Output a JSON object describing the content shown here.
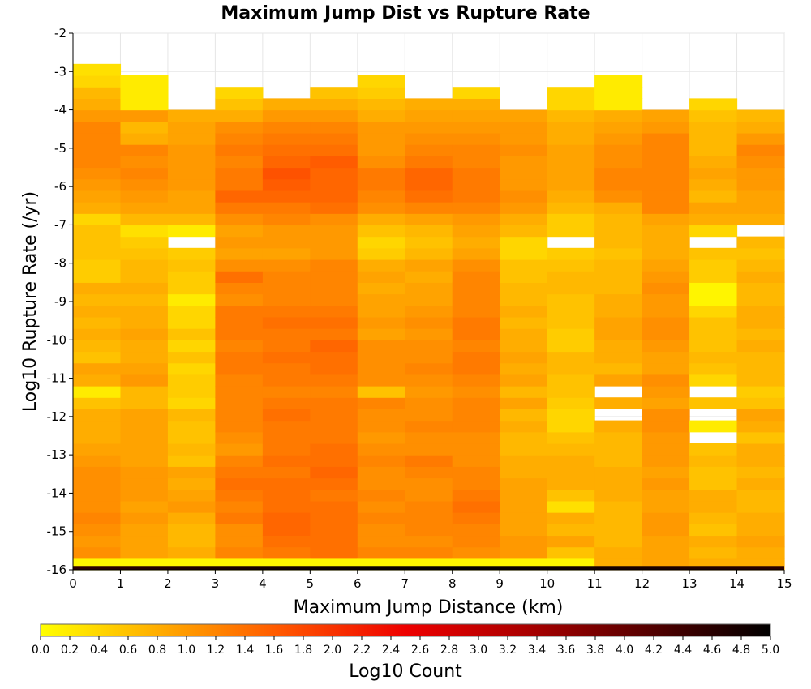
{
  "chart_data": {
    "type": "heatmap",
    "title": "Maximum Jump Dist vs Rupture Rate",
    "xlabel": "Maximum Jump Distance (km)",
    "ylabel": "Log10 Rupture Rate (/yr)",
    "colorbar_label": "Log10 Count",
    "xlim": [
      0,
      15
    ],
    "ylim": [
      -16,
      -2
    ],
    "x_ticks": [
      "0",
      "1",
      "2",
      "3",
      "4",
      "5",
      "6",
      "7",
      "8",
      "9",
      "10",
      "11",
      "12",
      "13",
      "14",
      "15"
    ],
    "y_ticks": [
      "-2",
      "-3",
      "-4",
      "-5",
      "-6",
      "-7",
      "-8",
      "-9",
      "-10",
      "-11",
      "-12",
      "-13",
      "-14",
      "-15",
      "-16"
    ],
    "colorbar_range": [
      0,
      5
    ],
    "colorbar_ticks": [
      "0.0",
      "0.2",
      "0.4",
      "0.6",
      "0.8",
      "1.0",
      "1.2",
      "1.4",
      "1.6",
      "1.8",
      "2.0",
      "2.2",
      "2.4",
      "2.6",
      "2.8",
      "3.0",
      "3.2",
      "3.4",
      "3.6",
      "3.8",
      "4.0",
      "4.2",
      "4.4",
      "4.6",
      "4.8",
      "5.0"
    ],
    "colormap": [
      "#ffff00",
      "#ffaa00",
      "#ff5500",
      "#ee0000",
      "#aa0000",
      "#550000",
      "#000000"
    ],
    "x_bin_width_km": 1,
    "y_bin_width_log10": 0.3,
    "y_bin_start": -16,
    "x_bin_centers_km": [
      0.5,
      1.5,
      2.5,
      3.5,
      4.5,
      5.5,
      6.5,
      7.5,
      8.5,
      9.5,
      10.5,
      11.5,
      12.5,
      13.5,
      14.5
    ],
    "y_bin_centers_log10": [
      -15.85,
      -15.55,
      -15.25,
      -14.95,
      -14.65,
      -14.35,
      -14.05,
      -13.75,
      -13.45,
      -13.15,
      -12.85,
      -12.55,
      -12.25,
      -11.95,
      -11.65,
      -11.35,
      -11.05,
      -10.75,
      -10.45,
      -10.15,
      -9.85,
      -9.55,
      -9.25,
      -8.95,
      -8.65,
      -8.35,
      -8.05,
      -7.75,
      -7.45,
      -7.15,
      -6.85,
      -6.55,
      -6.25,
      -5.95,
      -5.65,
      -5.35,
      -5.05,
      -4.75,
      -4.45,
      -4.15,
      -3.85,
      -3.55,
      -3.25,
      -2.95
    ],
    "log10_count_rows_by_x_bin": [
      [
        0.1,
        1.1,
        1.0,
        1.1,
        1.2,
        1.1,
        1.1,
        1.1,
        1.1,
        1.0,
        0.9,
        0.8,
        0.8,
        0.8,
        0.6,
        0.2,
        0.8,
        0.9,
        0.6,
        0.7,
        0.8,
        0.7,
        0.8,
        0.7,
        0.8,
        0.5,
        0.5,
        0.6,
        0.6,
        0.6,
        0.4,
        0.8,
        0.9,
        1.0,
        1.1,
        1.2,
        1.2,
        1.2,
        1.2,
        1.0,
        0.8,
        0.7,
        0.4,
        0.3
      ],
      [
        0.1,
        0.9,
        0.9,
        0.9,
        1.0,
        0.9,
        1.0,
        1.0,
        1.0,
        0.9,
        0.9,
        0.9,
        0.9,
        0.9,
        0.7,
        0.7,
        1.0,
        0.9,
        0.8,
        0.8,
        0.9,
        0.8,
        0.8,
        0.7,
        0.8,
        0.7,
        0.7,
        0.6,
        0.5,
        0.3,
        0.7,
        0.9,
        1.0,
        1.1,
        1.2,
        1.1,
        1.2,
        0.8,
        0.7,
        1.0,
        0.2,
        0.2,
        0.2,
        null
      ],
      [
        0.1,
        0.8,
        0.7,
        0.7,
        0.8,
        1.0,
        0.9,
        0.8,
        0.9,
        0.6,
        0.7,
        0.6,
        0.6,
        0.7,
        0.4,
        0.5,
        0.5,
        0.4,
        0.6,
        0.4,
        0.6,
        0.4,
        0.4,
        0.2,
        0.5,
        0.5,
        0.6,
        0.5,
        null,
        0.2,
        0.7,
        0.9,
        0.9,
        1.0,
        1.0,
        1.0,
        1.0,
        0.9,
        0.9,
        0.8,
        null,
        null,
        null,
        null
      ],
      [
        0.1,
        1.2,
        1.1,
        1.1,
        1.3,
        1.2,
        1.3,
        1.4,
        1.3,
        1.2,
        1.0,
        1.1,
        1.2,
        1.2,
        1.2,
        1.2,
        1.2,
        1.3,
        1.3,
        1.2,
        1.3,
        1.3,
        1.3,
        1.1,
        1.2,
        1.4,
        1.1,
        0.9,
        1.0,
        0.9,
        1.1,
        1.3,
        1.5,
        1.3,
        1.3,
        1.2,
        1.3,
        1.2,
        1.1,
        0.8,
        0.6,
        0.4,
        null,
        null
      ],
      [
        0.1,
        1.3,
        1.4,
        1.5,
        1.5,
        1.4,
        1.4,
        1.4,
        1.3,
        1.4,
        1.3,
        1.3,
        1.3,
        1.4,
        1.3,
        1.2,
        1.3,
        1.3,
        1.4,
        1.3,
        1.3,
        1.4,
        1.3,
        1.2,
        1.2,
        1.2,
        1.1,
        0.9,
        1.0,
        1.0,
        1.2,
        1.3,
        1.5,
        1.6,
        1.7,
        1.5,
        1.4,
        1.3,
        1.2,
        1.0,
        0.8,
        null,
        null,
        null
      ],
      [
        0.1,
        1.4,
        1.4,
        1.4,
        1.4,
        1.4,
        1.3,
        1.4,
        1.5,
        1.4,
        1.4,
        1.3,
        1.3,
        1.3,
        1.3,
        1.2,
        1.3,
        1.4,
        1.4,
        1.5,
        1.3,
        1.4,
        1.3,
        1.2,
        1.2,
        1.2,
        1.2,
        1.0,
        1.0,
        1.0,
        1.1,
        1.4,
        1.5,
        1.5,
        1.5,
        1.6,
        1.4,
        1.3,
        1.2,
        1.0,
        0.8,
        0.6,
        null,
        null
      ],
      [
        0.1,
        1.2,
        1.1,
        1.1,
        1.2,
        1.1,
        1.2,
        1.1,
        1.1,
        1.2,
        1.1,
        1.0,
        1.1,
        1.1,
        1.2,
        0.6,
        1.1,
        1.1,
        1.1,
        1.1,
        0.9,
        1.0,
        0.9,
        0.9,
        0.8,
        0.9,
        0.8,
        0.5,
        0.4,
        0.6,
        0.8,
        1.1,
        1.2,
        1.3,
        1.3,
        1.1,
        1.0,
        1.0,
        1.0,
        0.8,
        0.7,
        0.5,
        0.4,
        null
      ],
      [
        0.1,
        1.2,
        1.1,
        1.2,
        1.2,
        1.2,
        1.1,
        1.1,
        1.2,
        1.3,
        1.1,
        1.1,
        1.2,
        1.1,
        1.1,
        1.0,
        1.1,
        1.2,
        1.1,
        1.1,
        1.0,
        1.1,
        1.0,
        0.9,
        0.9,
        0.8,
        0.9,
        0.7,
        0.6,
        0.7,
        0.9,
        1.2,
        1.4,
        1.5,
        1.5,
        1.3,
        1.2,
        1.1,
        1.0,
        0.9,
        0.8,
        null,
        null,
        null
      ],
      [
        0.1,
        1.1,
        1.2,
        1.2,
        1.3,
        1.4,
        1.3,
        1.2,
        1.2,
        1.1,
        1.1,
        1.1,
        1.2,
        1.2,
        1.2,
        1.1,
        1.2,
        1.3,
        1.3,
        1.2,
        1.3,
        1.3,
        1.2,
        1.2,
        1.2,
        1.2,
        1.1,
        0.9,
        0.8,
        0.9,
        1.0,
        1.2,
        1.3,
        1.3,
        1.3,
        1.2,
        1.2,
        1.1,
        1.0,
        0.9,
        0.8,
        0.4,
        null,
        null
      ],
      [
        0.1,
        1.0,
        1.0,
        0.9,
        0.9,
        0.9,
        0.9,
        0.9,
        0.8,
        0.8,
        0.7,
        0.7,
        0.8,
        0.7,
        0.9,
        0.7,
        0.9,
        0.8,
        0.9,
        0.8,
        0.8,
        0.7,
        0.8,
        0.7,
        0.7,
        0.6,
        0.6,
        0.4,
        0.4,
        0.7,
        0.8,
        1.0,
        1.1,
        1.0,
        1.0,
        1.0,
        1.1,
        1.0,
        1.0,
        0.9,
        null,
        null,
        null,
        null
      ],
      [
        0.1,
        0.6,
        0.9,
        0.7,
        0.8,
        0.3,
        0.6,
        0.8,
        0.8,
        0.8,
        0.7,
        0.6,
        0.4,
        0.4,
        0.5,
        0.6,
        0.6,
        0.7,
        0.7,
        0.5,
        0.5,
        0.6,
        0.6,
        0.6,
        0.7,
        0.7,
        0.6,
        0.5,
        null,
        0.5,
        0.5,
        0.7,
        0.8,
        0.9,
        0.9,
        0.9,
        0.9,
        0.8,
        0.8,
        0.7,
        0.4,
        0.4,
        null,
        null
      ],
      [
        0.8,
        0.8,
        0.7,
        0.7,
        0.7,
        0.7,
        0.8,
        0.8,
        0.8,
        0.7,
        0.7,
        0.7,
        0.8,
        null,
        0.8,
        null,
        0.9,
        0.7,
        0.8,
        0.8,
        0.9,
        0.9,
        0.8,
        0.8,
        0.7,
        0.7,
        0.7,
        0.6,
        0.7,
        0.7,
        0.7,
        0.8,
        1.1,
        1.2,
        1.2,
        1.1,
        1.1,
        1.0,
        0.9,
        0.8,
        0.2,
        0.2,
        0.2,
        null
      ],
      [
        0.9,
        0.9,
        0.9,
        1.0,
        1.0,
        0.9,
        0.9,
        1.0,
        0.9,
        1.0,
        1.0,
        1.0,
        1.1,
        1.1,
        0.9,
        1.0,
        1.1,
        0.9,
        0.9,
        1.0,
        1.1,
        1.1,
        1.0,
        1.0,
        1.1,
        1.0,
        0.9,
        0.8,
        0.8,
        0.8,
        0.9,
        1.2,
        1.2,
        1.2,
        1.2,
        1.2,
        1.2,
        1.2,
        1.0,
        0.9,
        null,
        null,
        null,
        null
      ],
      [
        0.8,
        0.7,
        0.8,
        0.6,
        0.7,
        0.8,
        0.8,
        0.6,
        0.6,
        0.7,
        0.6,
        null,
        0.2,
        null,
        0.6,
        null,
        0.4,
        0.6,
        0.7,
        0.6,
        0.6,
        0.6,
        0.4,
        0.1,
        0.1,
        0.5,
        0.5,
        0.6,
        null,
        0.4,
        0.8,
        0.9,
        0.7,
        0.8,
        0.9,
        0.8,
        0.7,
        0.7,
        0.7,
        0.6,
        0.4,
        null,
        null,
        null
      ],
      [
        0.8,
        0.8,
        0.9,
        0.8,
        0.8,
        0.7,
        0.7,
        0.8,
        0.7,
        0.8,
        0.8,
        0.6,
        0.8,
        0.9,
        0.6,
        0.5,
        0.7,
        0.7,
        0.7,
        0.8,
        0.7,
        0.8,
        0.8,
        0.7,
        0.7,
        0.8,
        0.7,
        0.6,
        0.7,
        null,
        0.8,
        0.9,
        0.9,
        1.0,
        1.0,
        1.1,
        1.2,
        1.0,
        0.8,
        0.7,
        null,
        null,
        null,
        null
      ]
    ]
  }
}
